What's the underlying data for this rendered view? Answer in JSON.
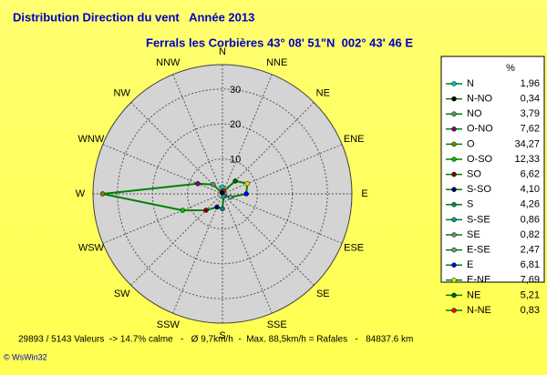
{
  "chart_data": {
    "type": "radar",
    "title": "Distribution Direction du vent   Année 2013",
    "subtitle": "Ferrals les Corbières 43° 08' 51\"N  002° 43' 46 E",
    "categories": [
      "N",
      "NNE",
      "NE",
      "ENE",
      "E",
      "ESE",
      "SE",
      "SSE",
      "S",
      "SSW",
      "SW",
      "WSW",
      "W",
      "WNW",
      "NW",
      "NNW"
    ],
    "point_names": [
      "N",
      "N-NE",
      "NE",
      "E-NE",
      "E",
      "E-SE",
      "SE",
      "S-SE",
      "S",
      "S-SO",
      "SO",
      "O-SO",
      "O",
      "O-NO",
      "NO",
      "N-NO"
    ],
    "values": [
      1.96,
      0.83,
      5.21,
      7.69,
      6.81,
      2.47,
      0.82,
      0.86,
      4.26,
      4.1,
      6.62,
      12.33,
      34.27,
      7.62,
      3.79,
      0.34
    ],
    "value_labels": [
      "1,96",
      "0,83",
      "5,21",
      "7,69",
      "6,81",
      "2,47",
      "0,82",
      "0,86",
      "4,26",
      "4,10",
      "6,62",
      "12,33",
      "34,27",
      "7,62",
      "3,79",
      "0,34"
    ],
    "point_colors": [
      "#00c0c0",
      "#ff0000",
      "#006000",
      "#e0e000",
      "#0000ff",
      "#60a080",
      "#808080",
      "#00a0a0",
      "#008080",
      "#000080",
      "#800000",
      "#00c000",
      "#808000",
      "#800080",
      "#609060",
      "#000000"
    ],
    "color": "#008000",
    "legend_title": "%",
    "rlim": [
      0,
      37
    ],
    "rticks": [
      10,
      20,
      30
    ],
    "grid": true,
    "footer": "29893 / 5143 Valeurs  -> 14.7% calme   -   Ø 9,7km/h  -  Max. 88,5km/h = Rafales   -   84837.6 km",
    "credit": "© WsWin32"
  }
}
